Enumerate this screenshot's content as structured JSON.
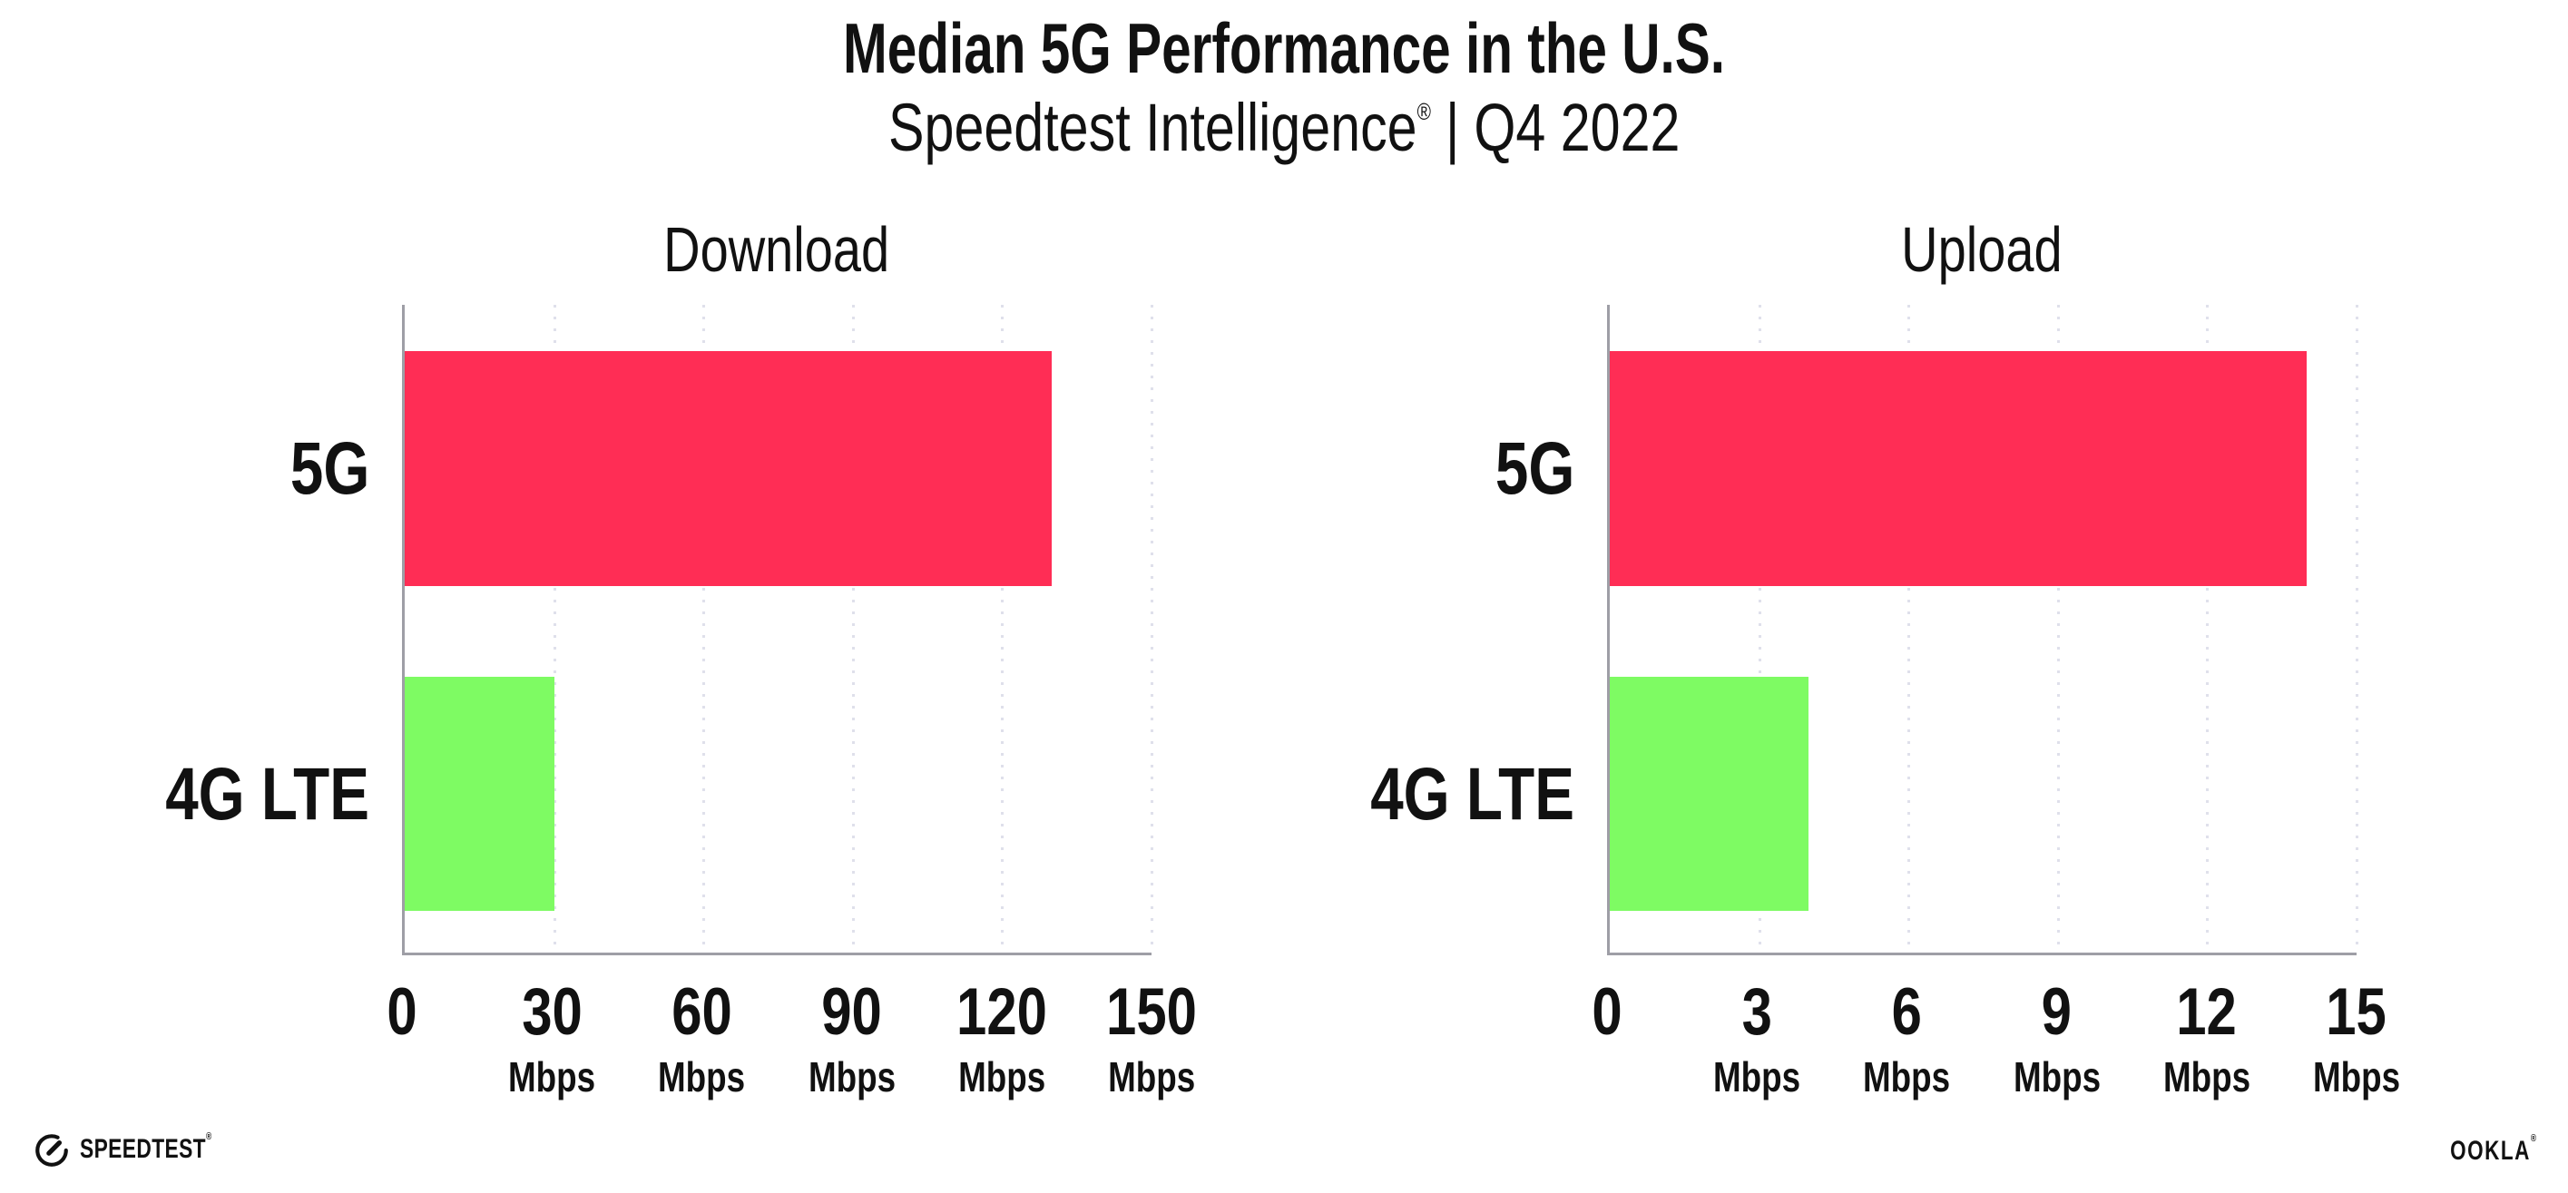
{
  "header": {
    "title": "Median 5G Performance in the U.S.",
    "subtitle_brand": "Speedtest Intelligence",
    "subtitle_reg": "®",
    "subtitle_divider": "|",
    "subtitle_period": "Q4 2022"
  },
  "chart_data": [
    {
      "type": "bar",
      "orientation": "horizontal",
      "title": "Download",
      "categories": [
        "5G",
        "4G LTE"
      ],
      "values": [
        130,
        30
      ],
      "unit": "Mbps",
      "xlim": [
        0,
        150
      ],
      "xticks": [
        0,
        30,
        60,
        90,
        120,
        150
      ],
      "bar_colors": [
        "#ff2d55",
        "#7efb63"
      ],
      "grid": "dotted-vertical",
      "legend": "none"
    },
    {
      "type": "bar",
      "orientation": "horizontal",
      "title": "Upload",
      "categories": [
        "5G",
        "4G LTE"
      ],
      "values": [
        14,
        4
      ],
      "unit": "Mbps",
      "xlim": [
        0,
        15
      ],
      "xticks": [
        0,
        3,
        6,
        9,
        12,
        15
      ],
      "bar_colors": [
        "#ff2d55",
        "#7efb63"
      ],
      "grid": "dotted-vertical",
      "legend": "none"
    }
  ],
  "footer": {
    "speedtest_label": "SPEEDTEST",
    "speedtest_reg": "®",
    "ookla_label": "OOKLA",
    "ookla_reg": "®"
  },
  "colors": {
    "bar_5g": "#ff2d55",
    "bar_4g_lte": "#7efb63",
    "axis": "#9e9ea6",
    "gridline": "#dfe0eb",
    "text": "#111111"
  }
}
